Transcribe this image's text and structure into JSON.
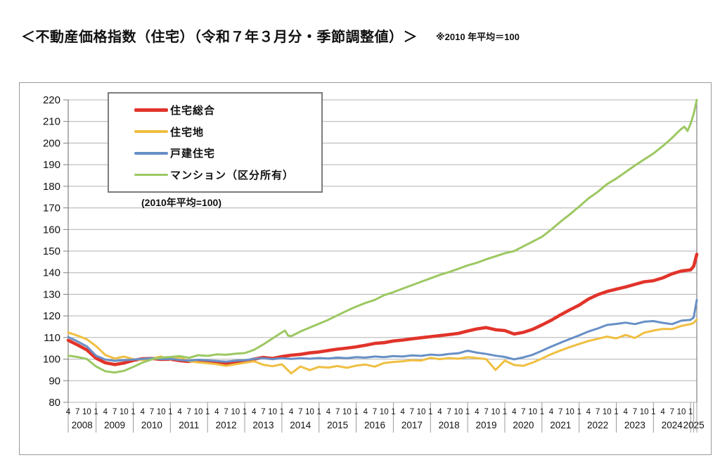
{
  "header": {
    "title": "＜不動産価格指数（住宅）（令和７年３月分・季節調整値）＞",
    "note": "※2010 年平均＝100"
  },
  "chart_data": {
    "type": "line",
    "title": "不動産価格指数（住宅）",
    "legend_note": "(2010年平均=100)",
    "legend_position": "top-left-inside",
    "grid": "horizontal-only",
    "y_axis": {
      "min": 80,
      "max": 220,
      "step": 10,
      "tick_labels": [
        "80",
        "90",
        "100",
        "110",
        "120",
        "130",
        "140",
        "150",
        "160",
        "170",
        "180",
        "190",
        "200",
        "210",
        "220"
      ]
    },
    "x_axis": {
      "unit": "months_since_2008_04",
      "range_months": [
        0,
        203
      ],
      "first_point": "2008-04",
      "last_point": "2025-03",
      "month_tick_labels": [
        "4",
        "7",
        "10",
        "1"
      ],
      "years": [
        "2008",
        "2009",
        "2010",
        "2011",
        "2012",
        "2013",
        "2014",
        "2015",
        "2016",
        "2017",
        "2018",
        "2019",
        "2020",
        "2021",
        "2022",
        "2023",
        "2024",
        "2025"
      ]
    },
    "colors": {
      "grid": "#b0b0b0",
      "axis": "#7f7f7f",
      "separator": "#9a9a9a"
    },
    "series": [
      {
        "name": "住宅総合",
        "color": "#e1342a",
        "width": 4.6,
        "points": [
          [
            0,
            108.7
          ],
          [
            3,
            106.6
          ],
          [
            6,
            104.3
          ],
          [
            9,
            100.4
          ],
          [
            12,
            98.3
          ],
          [
            15,
            97.5
          ],
          [
            18,
            98.2
          ],
          [
            21,
            99.4
          ],
          [
            24,
            100.2
          ],
          [
            27,
            100.3
          ],
          [
            30,
            99.9
          ],
          [
            33,
            100.0
          ],
          [
            36,
            99.3
          ],
          [
            39,
            98.9
          ],
          [
            42,
            99.4
          ],
          [
            45,
            99.0
          ],
          [
            48,
            98.6
          ],
          [
            51,
            98.1
          ],
          [
            54,
            98.7
          ],
          [
            57,
            99.0
          ],
          [
            60,
            100.0
          ],
          [
            63,
            100.8
          ],
          [
            66,
            100.3
          ],
          [
            69,
            101.2
          ],
          [
            72,
            101.8
          ],
          [
            75,
            102.2
          ],
          [
            78,
            102.9
          ],
          [
            81,
            103.3
          ],
          [
            84,
            104.0
          ],
          [
            87,
            104.6
          ],
          [
            90,
            105.1
          ],
          [
            93,
            105.7
          ],
          [
            96,
            106.4
          ],
          [
            99,
            107.3
          ],
          [
            102,
            107.6
          ],
          [
            105,
            108.4
          ],
          [
            108,
            108.8
          ],
          [
            111,
            109.4
          ],
          [
            114,
            109.9
          ],
          [
            117,
            110.4
          ],
          [
            120,
            110.9
          ],
          [
            123,
            111.4
          ],
          [
            126,
            111.9
          ],
          [
            129,
            113.0
          ],
          [
            132,
            114.0
          ],
          [
            135,
            114.6
          ],
          [
            138,
            113.6
          ],
          [
            141,
            113.2
          ],
          [
            144,
            111.6
          ],
          [
            147,
            112.4
          ],
          [
            150,
            113.8
          ],
          [
            153,
            115.8
          ],
          [
            156,
            118.0
          ],
          [
            159,
            120.5
          ],
          [
            162,
            122.8
          ],
          [
            165,
            125.0
          ],
          [
            168,
            127.8
          ],
          [
            171,
            129.8
          ],
          [
            174,
            131.3
          ],
          [
            177,
            132.4
          ],
          [
            180,
            133.4
          ],
          [
            183,
            134.6
          ],
          [
            186,
            135.8
          ],
          [
            189,
            136.3
          ],
          [
            192,
            137.6
          ],
          [
            195,
            139.5
          ],
          [
            198,
            140.8
          ],
          [
            201,
            141.3
          ],
          [
            202,
            143.0
          ],
          [
            203,
            148.5
          ]
        ]
      },
      {
        "name": "住宅地",
        "color": "#efbf41",
        "width": 3,
        "points": [
          [
            0,
            112.3
          ],
          [
            3,
            110.9
          ],
          [
            6,
            109.2
          ],
          [
            9,
            106.0
          ],
          [
            12,
            101.9
          ],
          [
            15,
            100.3
          ],
          [
            18,
            101.2
          ],
          [
            21,
            100.0
          ],
          [
            24,
            99.6
          ],
          [
            27,
            100.3
          ],
          [
            30,
            101.2
          ],
          [
            33,
            99.8
          ],
          [
            36,
            100.9
          ],
          [
            39,
            99.0
          ],
          [
            42,
            98.5
          ],
          [
            45,
            98.1
          ],
          [
            48,
            97.6
          ],
          [
            51,
            96.9
          ],
          [
            54,
            97.6
          ],
          [
            57,
            98.3
          ],
          [
            60,
            99.0
          ],
          [
            63,
            97.4
          ],
          [
            66,
            96.7
          ],
          [
            69,
            97.6
          ],
          [
            72,
            93.4
          ],
          [
            75,
            96.6
          ],
          [
            78,
            94.9
          ],
          [
            81,
            96.4
          ],
          [
            84,
            96.1
          ],
          [
            87,
            96.8
          ],
          [
            90,
            96.0
          ],
          [
            93,
            97.0
          ],
          [
            96,
            97.5
          ],
          [
            99,
            96.5
          ],
          [
            102,
            98.2
          ],
          [
            105,
            98.7
          ],
          [
            108,
            99.0
          ],
          [
            111,
            99.5
          ],
          [
            114,
            99.3
          ],
          [
            117,
            100.6
          ],
          [
            120,
            100.0
          ],
          [
            123,
            100.5
          ],
          [
            126,
            100.2
          ],
          [
            129,
            100.9
          ],
          [
            132,
            100.5
          ],
          [
            135,
            100.0
          ],
          [
            138,
            95.0
          ],
          [
            141,
            99.3
          ],
          [
            144,
            97.3
          ],
          [
            147,
            96.9
          ],
          [
            150,
            98.4
          ],
          [
            153,
            100.3
          ],
          [
            156,
            102.3
          ],
          [
            159,
            104.0
          ],
          [
            162,
            105.6
          ],
          [
            165,
            107.0
          ],
          [
            168,
            108.4
          ],
          [
            171,
            109.4
          ],
          [
            174,
            110.4
          ],
          [
            177,
            109.6
          ],
          [
            180,
            111.2
          ],
          [
            183,
            109.8
          ],
          [
            186,
            112.2
          ],
          [
            189,
            113.2
          ],
          [
            192,
            114.0
          ],
          [
            195,
            113.9
          ],
          [
            198,
            115.4
          ],
          [
            201,
            116.2
          ],
          [
            202,
            116.8
          ],
          [
            203,
            118.3
          ]
        ]
      },
      {
        "name": "戸建住宅",
        "color": "#678fc6",
        "width": 3,
        "points": [
          [
            0,
            110.2
          ],
          [
            3,
            108.2
          ],
          [
            6,
            105.9
          ],
          [
            9,
            101.6
          ],
          [
            12,
            99.8
          ],
          [
            15,
            99.2
          ],
          [
            18,
            99.5
          ],
          [
            21,
            99.8
          ],
          [
            24,
            100.1
          ],
          [
            27,
            100.4
          ],
          [
            30,
            100.0
          ],
          [
            33,
            100.1
          ],
          [
            36,
            99.6
          ],
          [
            39,
            99.3
          ],
          [
            42,
            99.7
          ],
          [
            45,
            99.4
          ],
          [
            48,
            99.1
          ],
          [
            51,
            98.8
          ],
          [
            54,
            99.3
          ],
          [
            57,
            99.5
          ],
          [
            60,
            100.1
          ],
          [
            63,
            100.4
          ],
          [
            66,
            100.0
          ],
          [
            69,
            100.4
          ],
          [
            72,
            100.1
          ],
          [
            75,
            100.4
          ],
          [
            78,
            100.2
          ],
          [
            81,
            100.5
          ],
          [
            84,
            100.3
          ],
          [
            87,
            100.7
          ],
          [
            90,
            100.4
          ],
          [
            93,
            100.9
          ],
          [
            96,
            100.7
          ],
          [
            99,
            101.2
          ],
          [
            102,
            100.9
          ],
          [
            105,
            101.4
          ],
          [
            108,
            101.2
          ],
          [
            111,
            101.7
          ],
          [
            114,
            101.5
          ],
          [
            117,
            102.1
          ],
          [
            120,
            101.8
          ],
          [
            123,
            102.4
          ],
          [
            126,
            102.7
          ],
          [
            129,
            103.9
          ],
          [
            132,
            103.0
          ],
          [
            135,
            102.4
          ],
          [
            138,
            101.6
          ],
          [
            141,
            101.0
          ],
          [
            144,
            99.9
          ],
          [
            147,
            100.8
          ],
          [
            150,
            102.0
          ],
          [
            153,
            103.9
          ],
          [
            156,
            105.8
          ],
          [
            159,
            107.6
          ],
          [
            162,
            109.3
          ],
          [
            165,
            111.0
          ],
          [
            168,
            112.8
          ],
          [
            171,
            114.2
          ],
          [
            174,
            115.8
          ],
          [
            177,
            116.3
          ],
          [
            180,
            116.9
          ],
          [
            183,
            116.2
          ],
          [
            186,
            117.3
          ],
          [
            189,
            117.6
          ],
          [
            192,
            116.8
          ],
          [
            195,
            116.2
          ],
          [
            198,
            117.8
          ],
          [
            201,
            118.2
          ],
          [
            202,
            119.3
          ],
          [
            203,
            127.4
          ]
        ]
      },
      {
        "name": "マンション（区分所有）",
        "color": "#9cc862",
        "width": 3,
        "points": [
          [
            0,
            101.6
          ],
          [
            3,
            101.0
          ],
          [
            6,
            100.1
          ],
          [
            9,
            96.6
          ],
          [
            12,
            94.4
          ],
          [
            15,
            93.8
          ],
          [
            18,
            94.6
          ],
          [
            21,
            96.4
          ],
          [
            24,
            98.4
          ],
          [
            27,
            99.9
          ],
          [
            30,
            100.7
          ],
          [
            33,
            101.0
          ],
          [
            36,
            101.4
          ],
          [
            39,
            100.6
          ],
          [
            42,
            101.8
          ],
          [
            45,
            101.5
          ],
          [
            48,
            102.2
          ],
          [
            51,
            102.0
          ],
          [
            54,
            102.5
          ],
          [
            57,
            102.8
          ],
          [
            60,
            104.3
          ],
          [
            63,
            106.8
          ],
          [
            66,
            109.6
          ],
          [
            69,
            112.4
          ],
          [
            70,
            113.2
          ],
          [
            71,
            110.9
          ],
          [
            72,
            110.6
          ],
          [
            75,
            112.8
          ],
          [
            78,
            114.6
          ],
          [
            81,
            116.4
          ],
          [
            84,
            118.2
          ],
          [
            87,
            120.3
          ],
          [
            90,
            122.4
          ],
          [
            93,
            124.3
          ],
          [
            96,
            126.0
          ],
          [
            99,
            127.4
          ],
          [
            102,
            129.6
          ],
          [
            105,
            131.0
          ],
          [
            108,
            132.6
          ],
          [
            111,
            134.2
          ],
          [
            114,
            135.8
          ],
          [
            117,
            137.4
          ],
          [
            120,
            139.0
          ],
          [
            123,
            140.3
          ],
          [
            126,
            141.8
          ],
          [
            129,
            143.4
          ],
          [
            132,
            144.6
          ],
          [
            135,
            146.2
          ],
          [
            138,
            147.6
          ],
          [
            141,
            149.0
          ],
          [
            144,
            150.0
          ],
          [
            147,
            152.2
          ],
          [
            150,
            154.4
          ],
          [
            153,
            156.6
          ],
          [
            156,
            160.0
          ],
          [
            159,
            163.6
          ],
          [
            162,
            167.0
          ],
          [
            165,
            170.6
          ],
          [
            168,
            174.4
          ],
          [
            171,
            177.4
          ],
          [
            174,
            181.0
          ],
          [
            177,
            183.6
          ],
          [
            180,
            186.6
          ],
          [
            183,
            189.6
          ],
          [
            186,
            192.4
          ],
          [
            189,
            195.2
          ],
          [
            192,
            198.6
          ],
          [
            195,
            202.4
          ],
          [
            198,
            206.6
          ],
          [
            199,
            207.6
          ],
          [
            200,
            205.6
          ],
          [
            201,
            209.0
          ],
          [
            202,
            213.5
          ],
          [
            203,
            220.0
          ]
        ]
      }
    ]
  }
}
